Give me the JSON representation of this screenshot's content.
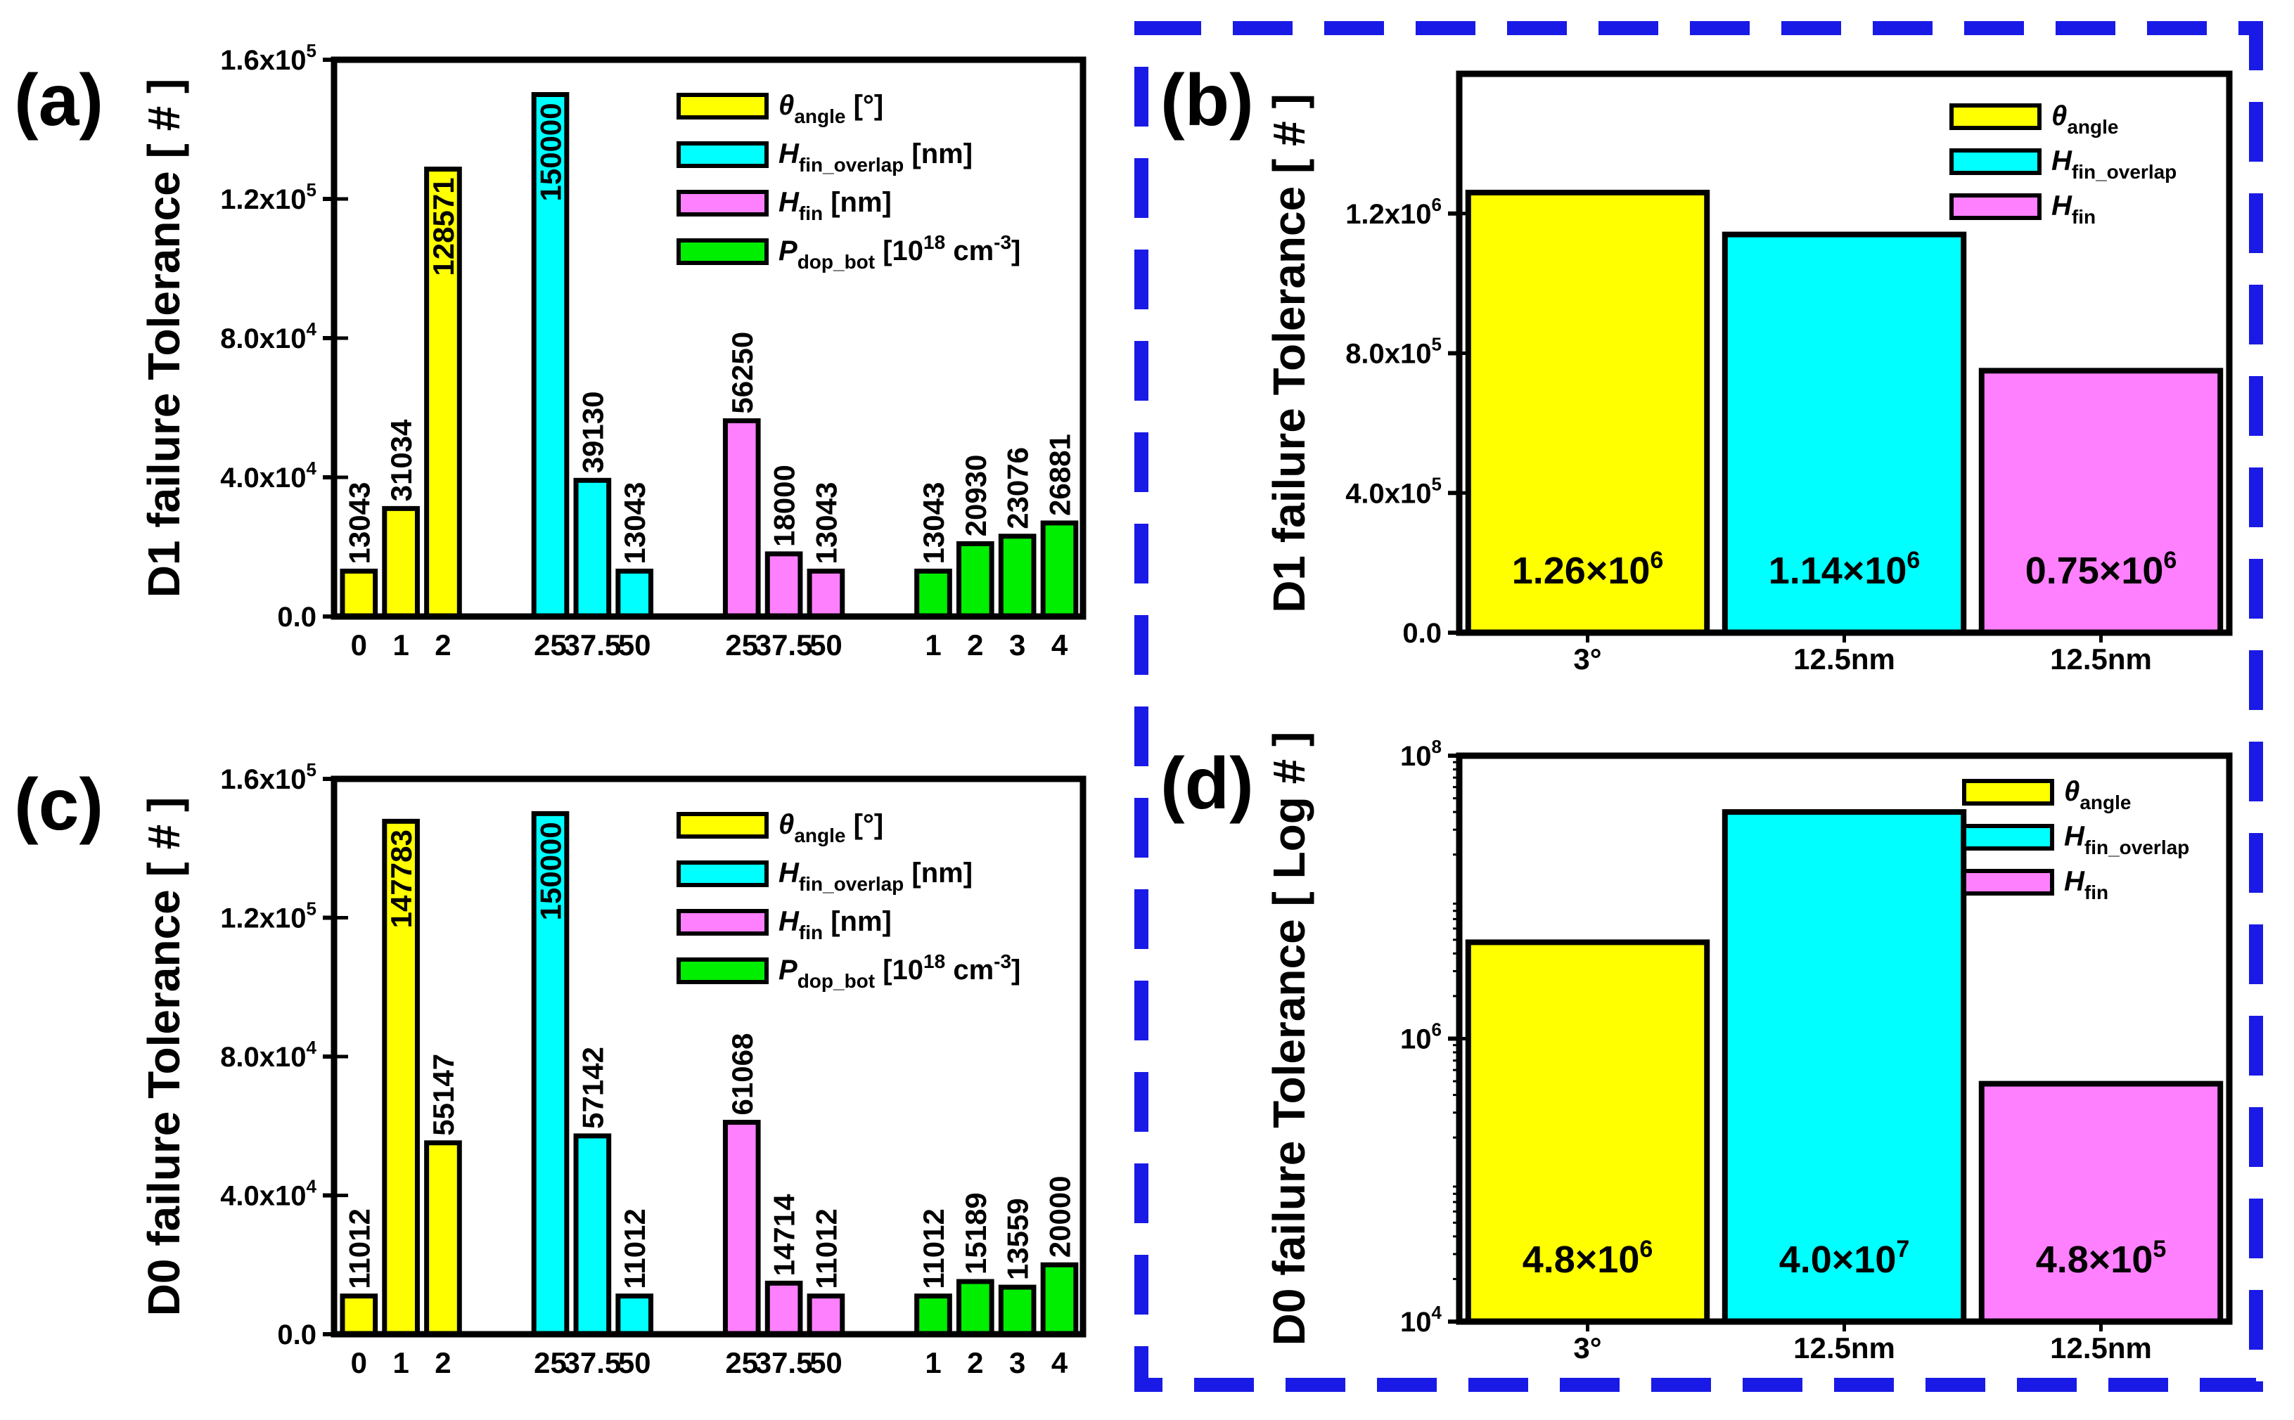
{
  "colors": {
    "yellow": "#ffff00",
    "cyan": "#00ffff",
    "magenta": "#ff80ff",
    "green": "#00ee00",
    "frame": "#1a1ae6"
  },
  "legend_full": [
    {
      "symbol": "θ",
      "sub": "angle",
      "unit": " [°]",
      "color": "yellow"
    },
    {
      "symbol": "H",
      "sub": "fin_overlap",
      "unit": " [nm]",
      "color": "cyan"
    },
    {
      "symbol": "H",
      "sub": "fin",
      "unit": " [nm]",
      "color": "magenta"
    },
    {
      "symbol": "P",
      "sub": "dop_bot",
      "unit": " [10",
      "unit_sup": "18",
      "unit_tail": " cm",
      "unit_sup2": "-3",
      "unit_end": "]",
      "color": "green"
    }
  ],
  "legend_short": [
    {
      "symbol": "θ",
      "sub": "angle",
      "color": "yellow"
    },
    {
      "symbol": "H",
      "sub": "fin_overlap",
      "color": "cyan"
    },
    {
      "symbol": "H",
      "sub": "fin",
      "color": "magenta"
    }
  ],
  "chart_data": [
    {
      "panel": "(a)",
      "type": "bar",
      "ylabel": "D1 failure Tolerance [ # ]",
      "ylim": [
        0,
        160000
      ],
      "yticks": [
        {
          "mant": "0.0",
          "exp": ""
        },
        {
          "mant": "4.0x10",
          "exp": "4"
        },
        {
          "mant": "8.0x10",
          "exp": "4"
        },
        {
          "mant": "1.2x10",
          "exp": "5"
        },
        {
          "mant": "1.6x10",
          "exp": "5"
        }
      ],
      "groups": [
        {
          "series": "θangle [°]",
          "color": "yellow",
          "categories": [
            "0",
            "1",
            "2"
          ],
          "values": [
            13043,
            31034,
            128571
          ],
          "labels": [
            "13043",
            "31034",
            "128571"
          ]
        },
        {
          "series": "Hfin_overlap [nm]",
          "color": "cyan",
          "categories": [
            "25",
            "37.5",
            "50"
          ],
          "values": [
            150000,
            39130,
            13043
          ],
          "labels": [
            "150000",
            "39130",
            "13043"
          ]
        },
        {
          "series": "Hfin [nm]",
          "color": "magenta",
          "categories": [
            "25",
            "37.5",
            "50"
          ],
          "values": [
            56250,
            18000,
            13043
          ],
          "labels": [
            "56250",
            "18000",
            "13043"
          ]
        },
        {
          "series": "Pdop_bot [10^18 cm^-3]",
          "color": "green",
          "categories": [
            "1",
            "2",
            "3",
            "4"
          ],
          "values": [
            13043,
            20930,
            23076,
            26881
          ],
          "labels": [
            "13043",
            "20930",
            "23076",
            "26881"
          ]
        }
      ]
    },
    {
      "panel": "(b)",
      "type": "bar",
      "ylabel": "D1 failure Tolerance [ # ]",
      "ylim": [
        0,
        1600000
      ],
      "yticks": [
        {
          "mant": "0.0",
          "exp": ""
        },
        {
          "mant": "4.0x10",
          "exp": "5"
        },
        {
          "mant": "8.0x10",
          "exp": "5"
        },
        {
          "mant": "1.2x10",
          "exp": "6"
        }
      ],
      "categories": [
        "3°",
        "12.5nm",
        "12.5nm"
      ],
      "values": [
        1260000,
        1140000,
        750000
      ],
      "colors": [
        "yellow",
        "cyan",
        "magenta"
      ],
      "annotations": [
        {
          "mant": "1.26×10",
          "exp": "6"
        },
        {
          "mant": "1.14×10",
          "exp": "6"
        },
        {
          "mant": "0.75×10",
          "exp": "6"
        }
      ]
    },
    {
      "panel": "(c)",
      "type": "bar",
      "ylabel": "D0 failure Tolerance [ # ]",
      "ylim": [
        0,
        160000
      ],
      "yticks": [
        {
          "mant": "0.0",
          "exp": ""
        },
        {
          "mant": "4.0x10",
          "exp": "4"
        },
        {
          "mant": "8.0x10",
          "exp": "4"
        },
        {
          "mant": "1.2x10",
          "exp": "5"
        },
        {
          "mant": "1.6x10",
          "exp": "5"
        }
      ],
      "groups": [
        {
          "series": "θangle [°]",
          "color": "yellow",
          "categories": [
            "0",
            "1",
            "2"
          ],
          "values": [
            11012,
            147783,
            55147
          ],
          "labels": [
            "11012",
            "147783",
            "55147"
          ]
        },
        {
          "series": "Hfin_overlap [nm]",
          "color": "cyan",
          "categories": [
            "25",
            "37.5",
            "50"
          ],
          "values": [
            150000,
            57142,
            11012
          ],
          "labels": [
            "150000",
            "57142",
            "11012"
          ]
        },
        {
          "series": "Hfin [nm]",
          "color": "magenta",
          "categories": [
            "25",
            "37.5",
            "50"
          ],
          "values": [
            61068,
            14714,
            11012
          ],
          "labels": [
            "61068",
            "14714",
            "11012"
          ]
        },
        {
          "series": "Pdop_bot [10^18 cm^-3]",
          "color": "green",
          "categories": [
            "1",
            "2",
            "3",
            "4"
          ],
          "values": [
            11012,
            15189,
            13559,
            20000
          ],
          "labels": [
            "11012",
            "15189",
            "13559",
            "20000"
          ]
        }
      ]
    },
    {
      "panel": "(d)",
      "type": "bar",
      "scale": "log",
      "ylabel": "D0 failure Tolerance [ Log # ]",
      "ylim": [
        10000,
        100000000
      ],
      "yticks": [
        {
          "mant": "10",
          "exp": "4"
        },
        {
          "mant": "10",
          "exp": "6"
        },
        {
          "mant": "10",
          "exp": "8"
        }
      ],
      "categories": [
        "3°",
        "12.5nm",
        "12.5nm"
      ],
      "values": [
        4800000,
        40000000,
        480000
      ],
      "colors": [
        "yellow",
        "cyan",
        "magenta"
      ],
      "annotations": [
        {
          "mant": "4.8×10",
          "exp": "6"
        },
        {
          "mant": "4.0×10",
          "exp": "7"
        },
        {
          "mant": "4.8×10",
          "exp": "5"
        }
      ]
    }
  ]
}
